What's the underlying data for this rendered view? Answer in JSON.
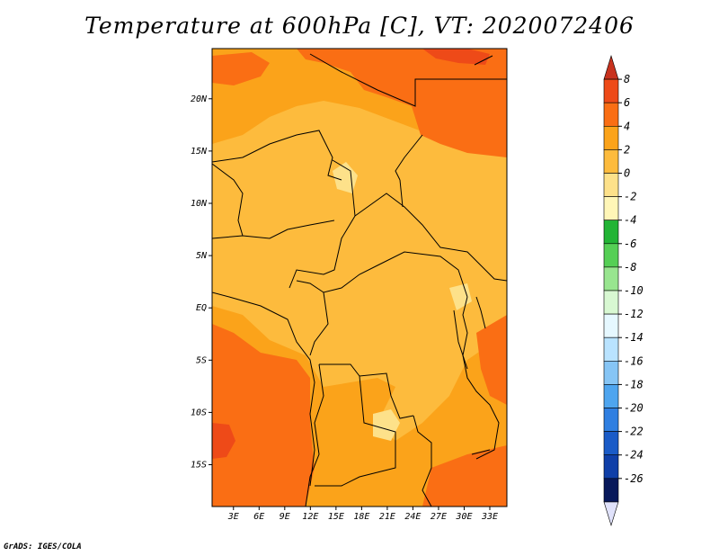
{
  "title": "Temperature at 600hPa [C], VT: 2020072406",
  "credit": "GrADS: IGES/COLA",
  "map": {
    "lat_labels": [
      "20N",
      "15N",
      "10N",
      "5N",
      "EQ",
      "5S",
      "10S",
      "15S"
    ],
    "lon_labels": [
      "3E",
      "6E",
      "9E",
      "12E",
      "15E",
      "18E",
      "21E",
      "24E",
      "27E",
      "30E",
      "33E"
    ],
    "lat_values": [
      20,
      15,
      10,
      5,
      0,
      -5,
      -10,
      -15
    ],
    "lon_values": [
      3,
      6,
      9,
      12,
      15,
      18,
      21,
      24,
      27,
      30,
      33
    ],
    "extent": {
      "lon_min": 0.5,
      "lon_max": 35,
      "lat_min": -19,
      "lat_max": 24.8
    },
    "field": "Temperature at 600hPa",
    "units": "C",
    "valid_time": "2020072406"
  },
  "colorbar": {
    "labels": [
      "8",
      "6",
      "4",
      "2",
      "0",
      "-2",
      "-4",
      "-6",
      "-8",
      "-10",
      "-12",
      "-14",
      "-16",
      "-18",
      "-20",
      "-22",
      "-24",
      "-26"
    ],
    "colors": [
      "#c8321e",
      "#ee4a18",
      "#fa6e14",
      "#fba31a",
      "#fdbb3d",
      "#fde18a",
      "#fff6b7",
      "#22b435",
      "#55cf55",
      "#98e58f",
      "#d8f8d2",
      "#e6f8ff",
      "#b9e3ff",
      "#86c5f5",
      "#4ea5ef",
      "#2f7fe1",
      "#1a5bc7",
      "#0f3fa8",
      "#08195b",
      "#e0e2fb"
    ]
  }
}
